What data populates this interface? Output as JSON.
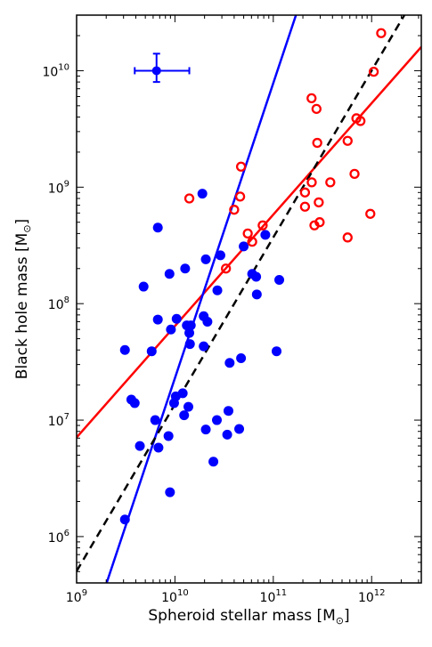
{
  "chart_data": {
    "type": "scatter",
    "xlabel": "Spheroid stellar mass [M",
    "xlabel_sub": "⊙",
    "xlabel_close": "]",
    "ylabel": "Black hole mass [M",
    "ylabel_sub": "⊙",
    "ylabel_close": "]",
    "x_scale": "log",
    "y_scale": "log",
    "xlim": [
      1000000000.0,
      3200000000000.0
    ],
    "ylim": [
      400000.0,
      30000000000.0
    ],
    "x_ticks": [
      {
        "value": 1000000000.0,
        "base": "10",
        "exp": "9"
      },
      {
        "value": 10000000000.0,
        "base": "10",
        "exp": "10"
      },
      {
        "value": 100000000000.0,
        "base": "10",
        "exp": "11"
      },
      {
        "value": 1000000000000.0,
        "base": "10",
        "exp": "12"
      }
    ],
    "y_ticks": [
      {
        "value": 1000000.0,
        "base": "10",
        "exp": "6"
      },
      {
        "value": 10000000.0,
        "base": "10",
        "exp": "7"
      },
      {
        "value": 100000000.0,
        "base": "10",
        "exp": "8"
      },
      {
        "value": 1000000000.0,
        "base": "10",
        "exp": "9"
      },
      {
        "value": 10000000000.0,
        "base": "10",
        "exp": "10"
      }
    ],
    "grid": false,
    "colors": {
      "blue": "#0000ff",
      "red": "#ff0000",
      "black": "#000000"
    },
    "series": [
      {
        "marker": "filled-circle",
        "color": "#0000ff",
        "points": [
          [
            6700000000.0,
            450000000.0
          ],
          [
            19000000000.0,
            880000000.0
          ],
          [
            4800000000.0,
            140000000.0
          ],
          [
            8800000000.0,
            180000000.0
          ],
          [
            12700000000.0,
            200000000.0
          ],
          [
            20600000000.0,
            240000000.0
          ],
          [
            29000000000.0,
            260000000.0
          ],
          [
            27000000000.0,
            130000000.0
          ],
          [
            50000000000.0,
            310000000.0
          ],
          [
            83000000000.0,
            390000000.0
          ],
          [
            61000000000.0,
            180000000.0
          ],
          [
            67000000000.0,
            170000000.0
          ],
          [
            68000000000.0,
            120000000.0
          ],
          [
            115000000000.0,
            160000000.0
          ],
          [
            108000000000.0,
            39000000.0
          ],
          [
            47000000000.0,
            34000000.0
          ],
          [
            36000000000.0,
            31000000.0
          ],
          [
            19600000000.0,
            78000000.0
          ],
          [
            21400000000.0,
            70000000.0
          ],
          [
            6700000000.0,
            73000000.0
          ],
          [
            10400000000.0,
            74000000.0
          ],
          [
            9100000000.0,
            60000000.0
          ],
          [
            13200000000.0,
            65000000.0
          ],
          [
            14500000000.0,
            65000000.0
          ],
          [
            14000000000.0,
            56000000.0
          ],
          [
            14200000000.0,
            45000000.0
          ],
          [
            19600000000.0,
            43000000.0
          ],
          [
            3100000000.0,
            40000000.0
          ],
          [
            5800000000.0,
            39000000.0
          ],
          [
            3600000000.0,
            15000000.0
          ],
          [
            3900000000.0,
            14000000.0
          ],
          [
            10200000000.0,
            16000000.0
          ],
          [
            12000000000.0,
            17000000.0
          ],
          [
            9800000000.0,
            14000000.0
          ],
          [
            13700000000.0,
            13000000.0
          ],
          [
            12400000000.0,
            11000000.0
          ],
          [
            6300000000.0,
            10000000.0
          ],
          [
            26700000000.0,
            10000000.0
          ],
          [
            35000000000.0,
            12000000.0
          ],
          [
            45000000000.0,
            8400000.0
          ],
          [
            20600000000.0,
            8300000.0
          ],
          [
            34000000000.0,
            7500000.0
          ],
          [
            8600000000.0,
            7300000.0
          ],
          [
            4400000000.0,
            6000000.0
          ],
          [
            6800000000.0,
            5800000.0
          ],
          [
            24600000000.0,
            4400000.0
          ],
          [
            8900000000.0,
            2400000.0
          ],
          [
            3100000000.0,
            1400000.0
          ]
        ]
      },
      {
        "marker": "open-circle",
        "color": "#ff0000",
        "points": [
          [
            1250000000000.0,
            21000000000.0
          ],
          [
            1050000000000.0,
            9800000000.0
          ],
          [
            245000000000.0,
            5800000000.0
          ],
          [
            275000000000.0,
            4700000000.0
          ],
          [
            700000000000.0,
            3900000000.0
          ],
          [
            770000000000.0,
            3700000000.0
          ],
          [
            280000000000.0,
            2400000000.0
          ],
          [
            570000000000.0,
            2500000000.0
          ],
          [
            47000000000.0,
            1500000000.0
          ],
          [
            670000000000.0,
            1300000000.0
          ],
          [
            246000000000.0,
            1100000000.0
          ],
          [
            380000000000.0,
            1100000000.0
          ],
          [
            210000000000.0,
            900000000.0
          ],
          [
            14000000000.0,
            800000000.0
          ],
          [
            46000000000.0,
            830000000.0
          ],
          [
            290000000000.0,
            740000000.0
          ],
          [
            40000000000.0,
            640000000.0
          ],
          [
            210000000000.0,
            680000000.0
          ],
          [
            970000000000.0,
            590000000.0
          ],
          [
            296000000000.0,
            500000000.0
          ],
          [
            262000000000.0,
            470000000.0
          ],
          [
            78000000000.0,
            470000000.0
          ],
          [
            55000000000.0,
            400000000.0
          ],
          [
            61000000000.0,
            340000000.0
          ],
          [
            570000000000.0,
            370000000.0
          ],
          [
            33000000000.0,
            200000000.0
          ]
        ]
      }
    ],
    "fit_lines": [
      {
        "color": "#ff0000",
        "style": "solid",
        "from": [
          1000000000.0,
          7100000.0
        ],
        "to": [
          3200000000000.0,
          16000000000.0
        ]
      },
      {
        "color": "#0000ff",
        "style": "solid",
        "from": [
          2020000000.0,
          400000.0
        ],
        "to": [
          170000000000.0,
          30000000000.0
        ]
      },
      {
        "color": "#000000",
        "style": "dashed",
        "from": [
          1000000000.0,
          505000.0
        ],
        "to": [
          2150000000000.0,
          30000000000.0
        ]
      }
    ],
    "error_bar": {
      "color": "#0000ff",
      "center": [
        6500000000.0,
        10000000000.0
      ],
      "x_range": [
        3900000000.0,
        14000000000.0
      ],
      "y_range": [
        8000000000.0,
        14000000000.0
      ]
    }
  }
}
